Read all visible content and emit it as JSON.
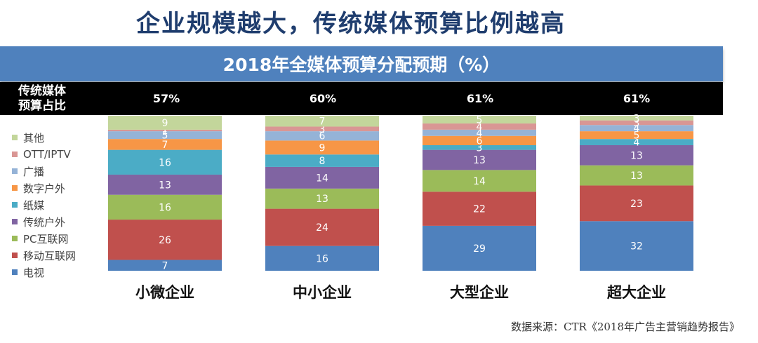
{
  "title": "企业规模越大，传统媒体预算比例越高",
  "banner": "2018年全媒体预算分配预期（%）",
  "share_row": {
    "label_line1": "传统媒体",
    "label_line2": "预算占比",
    "values": [
      "57%",
      "60%",
      "61%",
      "61%"
    ]
  },
  "source": "数据来源：CTR《2018年广告主营销趋势报告》",
  "chart_data": {
    "type": "bar",
    "stacked": true,
    "categories": [
      "小微企业",
      "中小企业",
      "大型企业",
      "超大企业"
    ],
    "ylim": [
      0,
      100
    ],
    "series": [
      {
        "name": "电视",
        "color": "#4f81bd",
        "values": [
          7,
          16,
          29,
          32
        ]
      },
      {
        "name": "移动互联网",
        "color": "#c0504d",
        "values": [
          26,
          24,
          22,
          23
        ]
      },
      {
        "name": "PC互联网",
        "color": "#9bbb59",
        "values": [
          16,
          13,
          14,
          13
        ]
      },
      {
        "name": "传统户外",
        "color": "#8064a2",
        "values": [
          13,
          14,
          13,
          13
        ]
      },
      {
        "name": "纸媒",
        "color": "#4bacc6",
        "values": [
          16,
          8,
          3,
          4
        ]
      },
      {
        "name": "数字户外",
        "color": "#f79646",
        "values": [
          7,
          9,
          6,
          5
        ]
      },
      {
        "name": "广播",
        "color": "#95b3d7",
        "values": [
          5,
          6,
          4,
          4
        ]
      },
      {
        "name": "OTT/IPTV",
        "color": "#d99694",
        "values": [
          1,
          3,
          4,
          3
        ]
      },
      {
        "name": "其他",
        "color": "#c3d69b",
        "values": [
          9,
          7,
          5,
          3
        ]
      }
    ]
  }
}
